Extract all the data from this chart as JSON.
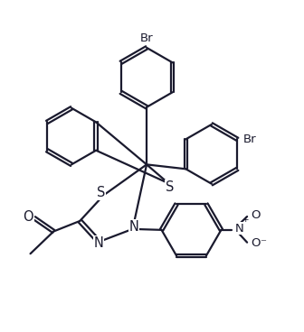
{
  "bg_color": "#ffffff",
  "line_color": "#1a1a2e",
  "line_width": 1.6,
  "font_size": 9.5,
  "figsize": [
    3.36,
    3.68
  ],
  "dpi": 100,
  "xlim": [
    0,
    10
  ],
  "ylim": [
    0,
    11
  ]
}
